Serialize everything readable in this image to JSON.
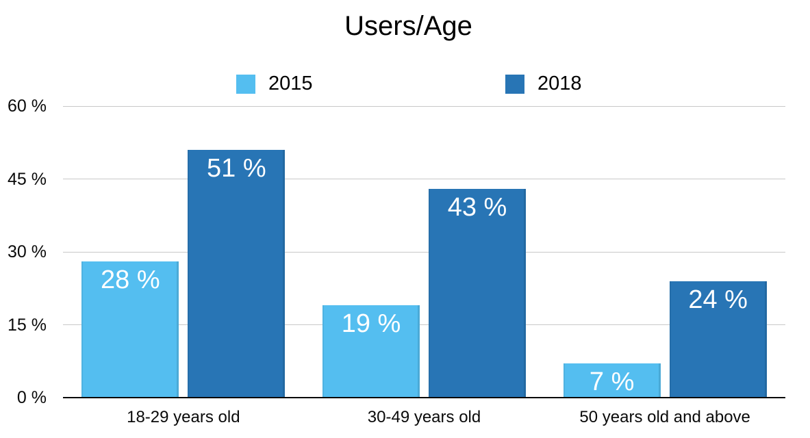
{
  "chart_data": {
    "type": "bar",
    "title": "Users/Age",
    "categories": [
      "18-29 years old",
      "30-49 years old",
      "50 years old and above"
    ],
    "series": [
      {
        "name": "2015",
        "color": "#54BEF0",
        "values": [
          28,
          19,
          7
        ],
        "labels": [
          "28 %",
          "19 %",
          "7 %"
        ]
      },
      {
        "name": "2018",
        "color": "#2875B5",
        "values": [
          51,
          43,
          24
        ],
        "labels": [
          "51 %",
          "43 %",
          "24 %"
        ]
      }
    ],
    "yticks": [
      {
        "value": 60,
        "label": "60 %"
      },
      {
        "value": 45,
        "label": "45 %"
      },
      {
        "value": 30,
        "label": "30 %"
      },
      {
        "value": 15,
        "label": "15 %"
      },
      {
        "value": 0,
        "label": "0 %"
      }
    ],
    "ylim": [
      0,
      60
    ],
    "grid": true,
    "legend_position": "top",
    "value_label_color": "#FFFFFF",
    "gridline_color": "#C8C8C8",
    "axis_color": "#0A0A0A",
    "text_color": "#0A0A0A"
  }
}
